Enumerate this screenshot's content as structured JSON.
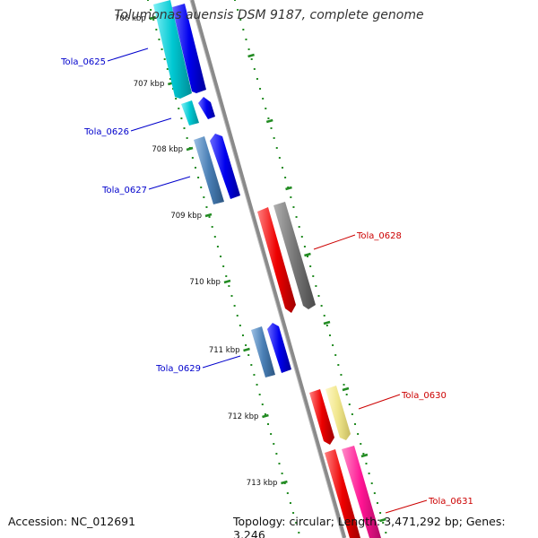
{
  "title": "Tolumonas auensis DSM 9187, complete genome",
  "footer": {
    "accession": "Accession: NC_012691",
    "summary": "Topology: circular; Length: 3,471,292 bp; Genes: 3,246"
  },
  "ticks": [
    {
      "label": "706 kbp"
    },
    {
      "label": "707 kbp"
    },
    {
      "label": "708 kbp"
    },
    {
      "label": "709 kbp"
    },
    {
      "label": "710 kbp"
    },
    {
      "label": "711 kbp"
    },
    {
      "label": "712 kbp"
    },
    {
      "label": "713 kbp"
    }
  ],
  "genes": [
    {
      "label": "Tola_0625",
      "strand": "minus",
      "color": "#0000cc"
    },
    {
      "label": "Tola_0626",
      "strand": "minus",
      "color": "#0000cc"
    },
    {
      "label": "Tola_0627",
      "strand": "minus",
      "color": "#0000cc"
    },
    {
      "label": "Tola_0628",
      "strand": "plus",
      "color": "#cc0000"
    },
    {
      "label": "Tola_0629",
      "strand": "minus",
      "color": "#0000cc"
    },
    {
      "label": "Tola_0630",
      "strand": "plus",
      "color": "#cc0000"
    },
    {
      "label": "Tola_0631",
      "strand": "plus",
      "color": "#cc0000"
    }
  ],
  "colors": {
    "backbone": "#8a8a8a",
    "dots": "#228b22",
    "cyan": "#00c8d2",
    "blue": "#0000ee",
    "steel": "#4a7fb5",
    "red": "#ee0000",
    "gray": "#777777",
    "khaki": "#f0e68c",
    "pink": "#ff1493"
  }
}
